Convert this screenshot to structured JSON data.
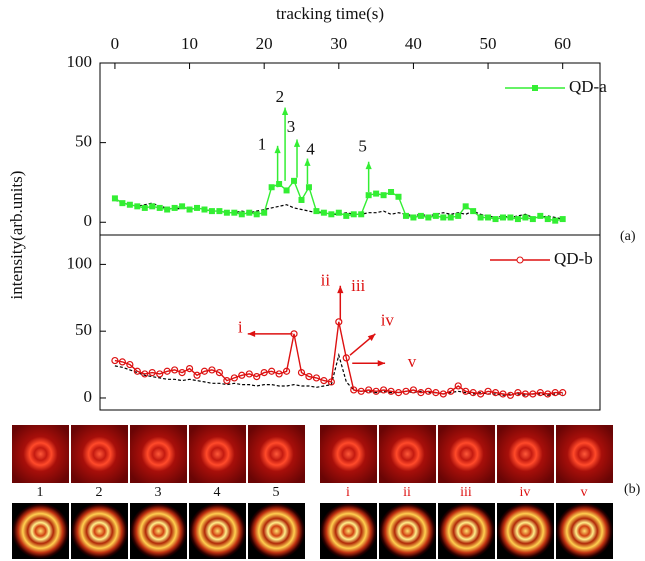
{
  "chart_data": [
    {
      "type": "line",
      "xlabel": "tracking time(s)",
      "ylabel": "intensity(arb.units)",
      "x": [
        0,
        1,
        2,
        3,
        4,
        5,
        6,
        7,
        8,
        9,
        10,
        11,
        12,
        13,
        14,
        15,
        16,
        17,
        18,
        19,
        20,
        21,
        22,
        23,
        24,
        25,
        26,
        27,
        28,
        29,
        30,
        31,
        32,
        33,
        34,
        35,
        36,
        37,
        38,
        39,
        40,
        41,
        42,
        43,
        44,
        45,
        46,
        47,
        48,
        49,
        50,
        51,
        52,
        53,
        54,
        55,
        56,
        57,
        58,
        59,
        60
      ],
      "xlim": [
        -2,
        65
      ],
      "xticks": [
        0,
        10,
        20,
        30,
        40,
        50,
        60
      ],
      "ylim": [
        -8,
        100
      ],
      "yticks": [
        0,
        50,
        100
      ],
      "legend": "upper right",
      "series": [
        {
          "color": "#000000",
          "dash": true,
          "values": [
            14,
            12,
            11,
            10,
            11,
            12,
            10,
            9,
            8,
            9,
            8,
            9,
            8,
            7,
            7,
            6,
            6,
            7,
            6,
            7,
            8,
            9,
            10,
            11,
            9,
            8,
            7,
            6,
            6,
            5,
            5,
            6,
            5,
            5,
            6,
            6,
            7,
            5,
            6,
            5,
            4,
            5,
            4,
            5,
            6,
            5,
            6,
            5,
            7,
            5,
            4,
            3,
            4,
            3,
            4,
            5,
            3,
            3,
            4,
            3,
            2
          ]
        },
        {
          "name": "QD-a",
          "color": "#33ee33",
          "marker": "square",
          "values": [
            15,
            12,
            11,
            10,
            9,
            10,
            9,
            8,
            9,
            10,
            8,
            9,
            8,
            7,
            7,
            6,
            6,
            5,
            6,
            5,
            6,
            22,
            24,
            20,
            26,
            14,
            22,
            7,
            6,
            5,
            6,
            4,
            5,
            5,
            17,
            18,
            17,
            19,
            16,
            4,
            3,
            4,
            3,
            4,
            3,
            3,
            4,
            10,
            7,
            3,
            3,
            2,
            3,
            3,
            2,
            3,
            2,
            4,
            2,
            1,
            2
          ]
        }
      ],
      "annotations": [
        "1",
        "2",
        "3",
        "4",
        "5"
      ],
      "panel_label": "(a)"
    },
    {
      "type": "line",
      "x": [
        0,
        1,
        2,
        3,
        4,
        5,
        6,
        7,
        8,
        9,
        10,
        11,
        12,
        13,
        14,
        15,
        16,
        17,
        18,
        19,
        20,
        21,
        22,
        23,
        24,
        25,
        26,
        27,
        28,
        29,
        30,
        31,
        32,
        33,
        34,
        35,
        36,
        37,
        38,
        39,
        40,
        41,
        42,
        43,
        44,
        45,
        46,
        47,
        48,
        49,
        50,
        51,
        52,
        53,
        54,
        55,
        56,
        57,
        58,
        59,
        60
      ],
      "xlim": [
        -2,
        65
      ],
      "ylim": [
        -9,
        122
      ],
      "yticks": [
        0,
        50,
        100
      ],
      "legend": "upper right",
      "series": [
        {
          "color": "#000000",
          "dash": true,
          "values": [
            24,
            23,
            21,
            19,
            17,
            16,
            15,
            14,
            14,
            13,
            14,
            13,
            12,
            11,
            11,
            10,
            11,
            10,
            10,
            9,
            10,
            10,
            9,
            9,
            10,
            9,
            9,
            8,
            9,
            10,
            32,
            12,
            6,
            5,
            5,
            4,
            5,
            4,
            4,
            5,
            4,
            5,
            4,
            4,
            3,
            4,
            5,
            4,
            3,
            4,
            3,
            3,
            2,
            3,
            3,
            2,
            3,
            3,
            2,
            3,
            3
          ]
        },
        {
          "name": "QD-b",
          "color": "#dd1111",
          "marker": "circle",
          "values": [
            28,
            27,
            25,
            20,
            18,
            19,
            18,
            20,
            21,
            19,
            22,
            17,
            20,
            21,
            19,
            13,
            15,
            17,
            18,
            16,
            19,
            20,
            18,
            20,
            48,
            19,
            16,
            15,
            13,
            12,
            57,
            30,
            6,
            5,
            6,
            5,
            6,
            5,
            4,
            5,
            6,
            4,
            5,
            4,
            3,
            5,
            9,
            5,
            4,
            3,
            5,
            4,
            3,
            2,
            4,
            3,
            3,
            4,
            3,
            4,
            4
          ]
        }
      ],
      "annotations": [
        "i",
        "ii",
        "iii",
        "iv",
        "v"
      ]
    }
  ],
  "images": {
    "left_labels": [
      "1",
      "2",
      "3",
      "4",
      "5"
    ],
    "right_labels": [
      "i",
      "ii",
      "iii",
      "iv",
      "v"
    ],
    "panel_label": "(b)"
  }
}
